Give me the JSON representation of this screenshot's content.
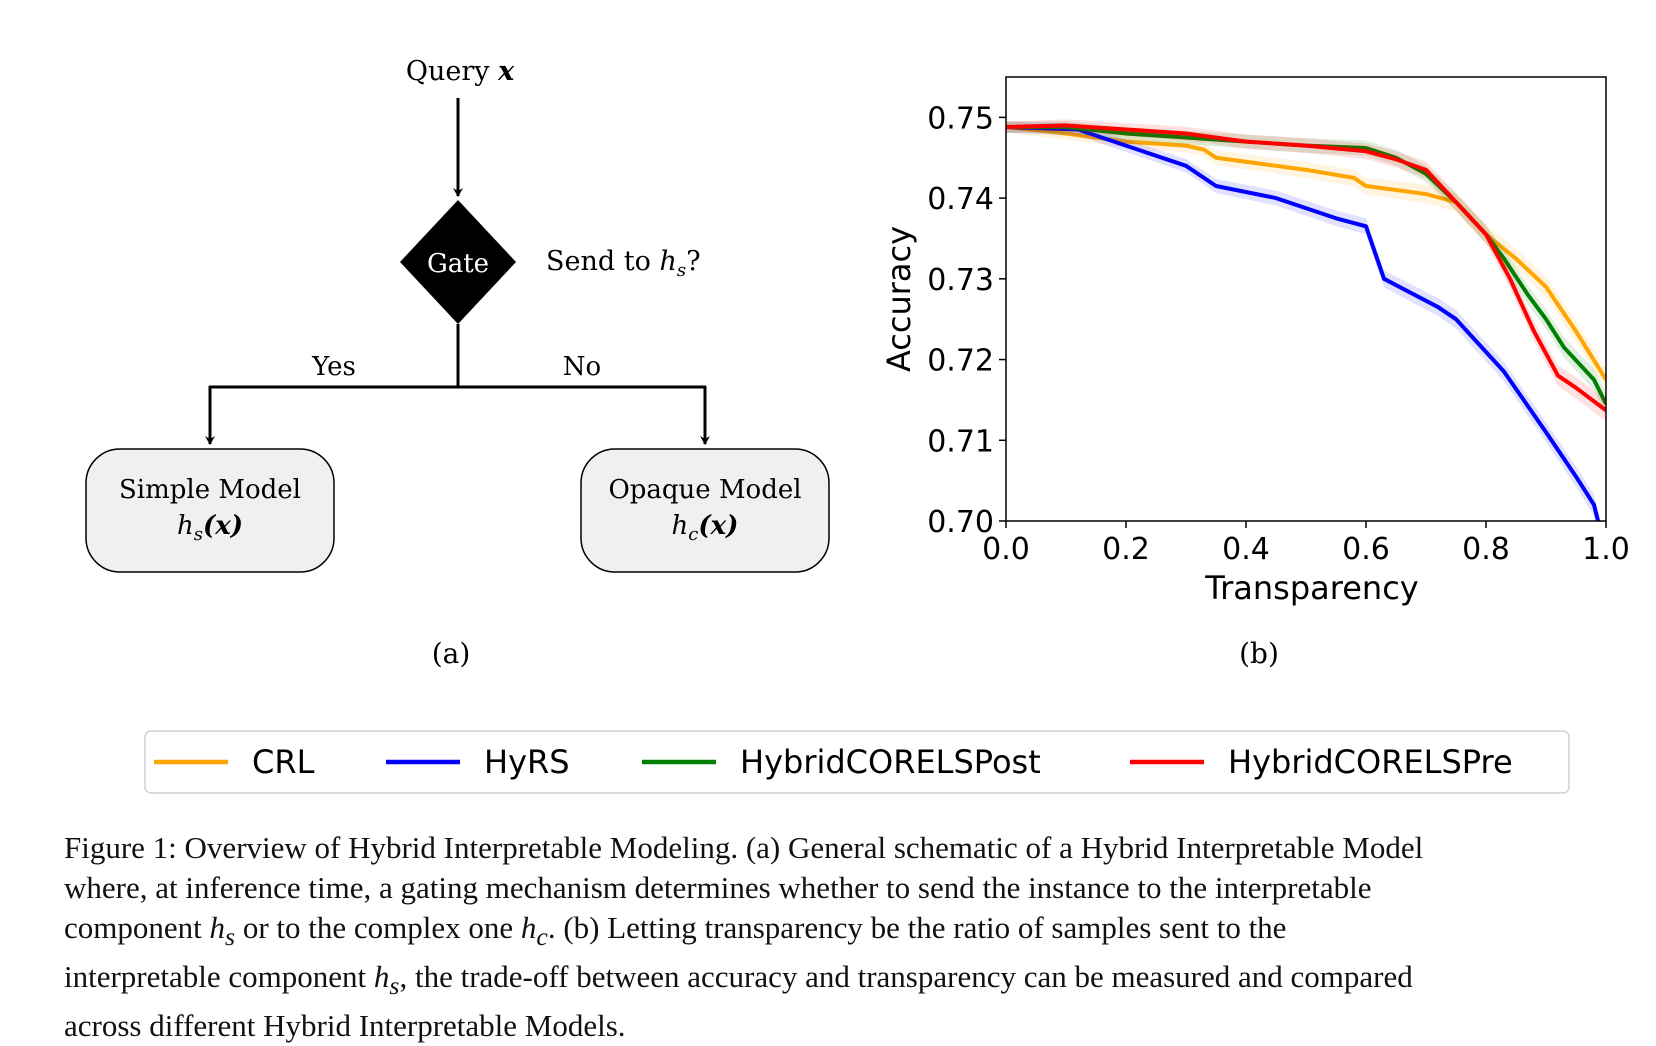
{
  "diagram": {
    "query_label": "Query",
    "query_var": "x",
    "gate_label": "Gate",
    "send_label": "Send to",
    "send_var": "h",
    "send_sub": "s",
    "send_q": "?",
    "yes_label": "Yes",
    "no_label": "No",
    "simple_title": "Simple Model",
    "simple_fn": "h",
    "simple_sub": "s",
    "simple_arg": "(x)",
    "opaque_title": "Opaque Model",
    "opaque_fn": "h",
    "opaque_sub": "c",
    "opaque_arg": "(x)",
    "panel_label": "(a)"
  },
  "chart_panel_label": "(b)",
  "chart_data": {
    "type": "line",
    "title": "",
    "xlabel": "Transparency",
    "ylabel": "Accuracy",
    "xlim": [
      0.0,
      1.0
    ],
    "ylim": [
      0.7,
      0.755
    ],
    "xticks": [
      "0.0",
      "0.2",
      "0.4",
      "0.6",
      "0.8",
      "1.0"
    ],
    "yticks": [
      "0.70",
      "0.71",
      "0.72",
      "0.73",
      "0.74",
      "0.75"
    ],
    "grid": false,
    "legend_position": "bottom",
    "series": [
      {
        "name": "CRL",
        "color": "#ffa500",
        "x": [
          0.0,
          0.1,
          0.2,
          0.3,
          0.33,
          0.35,
          0.4,
          0.5,
          0.58,
          0.6,
          0.65,
          0.7,
          0.75,
          0.8,
          0.85,
          0.9,
          0.95,
          1.0
        ],
        "y": [
          0.7488,
          0.748,
          0.747,
          0.7465,
          0.746,
          0.745,
          0.7445,
          0.7435,
          0.7425,
          0.7415,
          0.741,
          0.7405,
          0.7395,
          0.7355,
          0.7325,
          0.729,
          0.7235,
          0.7175
        ]
      },
      {
        "name": "HyRS",
        "color": "#0000ff",
        "x": [
          0.0,
          0.12,
          0.2,
          0.3,
          0.35,
          0.45,
          0.55,
          0.6,
          0.63,
          0.72,
          0.75,
          0.83,
          0.9,
          0.95,
          0.98,
          0.99
        ],
        "y": [
          0.7488,
          0.7485,
          0.7465,
          0.744,
          0.7415,
          0.74,
          0.7375,
          0.7365,
          0.73,
          0.7265,
          0.725,
          0.7185,
          0.711,
          0.7055,
          0.702,
          0.699
        ]
      },
      {
        "name": "HybridCORELSPost",
        "color": "#008000",
        "x": [
          0.0,
          0.1,
          0.2,
          0.3,
          0.4,
          0.5,
          0.6,
          0.65,
          0.7,
          0.75,
          0.8,
          0.83,
          0.87,
          0.9,
          0.93,
          0.98,
          1.0
        ],
        "y": [
          0.7488,
          0.7488,
          0.748,
          0.7475,
          0.747,
          0.7465,
          0.7462,
          0.745,
          0.743,
          0.7395,
          0.7355,
          0.7325,
          0.728,
          0.725,
          0.7215,
          0.7175,
          0.7145
        ]
      },
      {
        "name": "HybridCORELSPre",
        "color": "#ff0000",
        "x": [
          0.0,
          0.1,
          0.2,
          0.3,
          0.4,
          0.5,
          0.6,
          0.65,
          0.7,
          0.75,
          0.8,
          0.84,
          0.88,
          0.92,
          0.95,
          1.0
        ],
        "y": [
          0.7488,
          0.749,
          0.7485,
          0.748,
          0.747,
          0.7465,
          0.7458,
          0.7448,
          0.7435,
          0.7395,
          0.7355,
          0.73,
          0.7235,
          0.718,
          0.7165,
          0.7137
        ]
      }
    ]
  },
  "caption": {
    "line1": "Figure 1: Overview of Hybrid Interpretable Modeling. (a) General schematic of a Hybrid Interpretable Model",
    "line2": "where, at inference time, a gating mechanism determines whether to send the instance to the interpretable",
    "line3a": "component",
    "line3b": "or to the complex one",
    "line3c": ". (b) Letting transparency be the ratio of samples sent to the",
    "line4a": "interpretable component",
    "line4b": ", the trade-off between accuracy and transparency can be measured and compared",
    "line5": "across different Hybrid Interpretable Models.",
    "h": "h",
    "sub_s": "s",
    "sub_c": "c"
  }
}
